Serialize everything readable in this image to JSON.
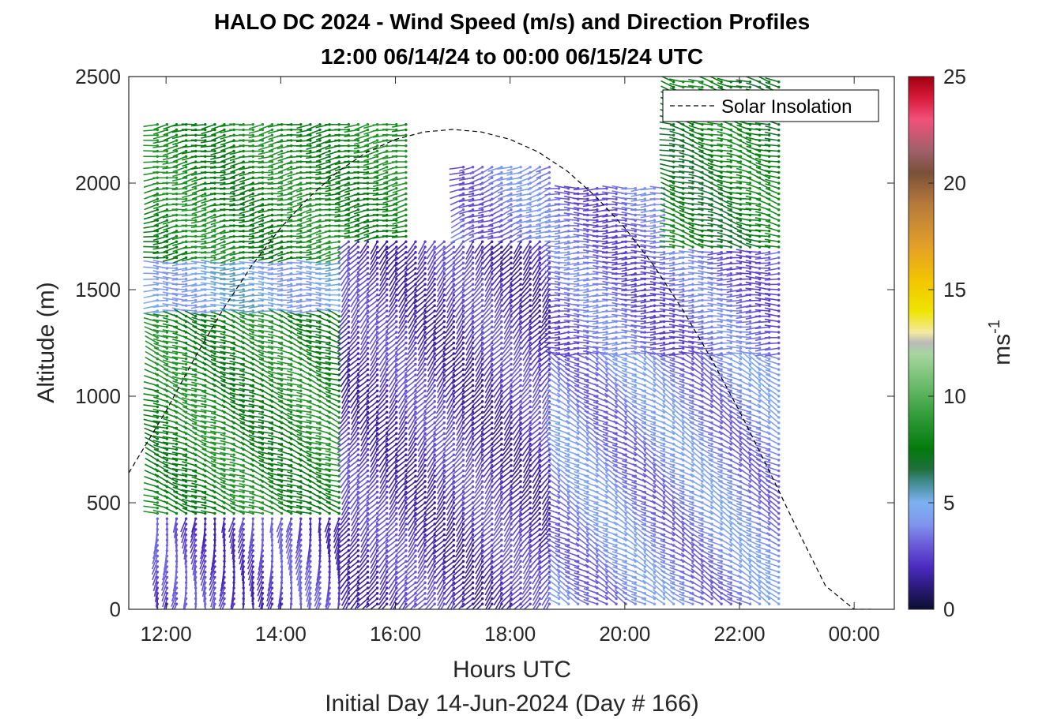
{
  "chart_data": {
    "type": "wind_barb_profile",
    "title": "HALO DC 2024 - Wind Speed (m/s) and Direction Profiles",
    "subtitle": "12:00 06/14/24 to 00:00 06/15/24  UTC",
    "xlabel": "Hours UTC",
    "xlabel2": "Initial Day 14-Jun-2024 (Day # 166)",
    "ylabel": "Altitude (m)",
    "xlim": [
      11.35,
      24.7
    ],
    "ylim": [
      0,
      2500
    ],
    "x_ticks": [
      12,
      14,
      16,
      18,
      20,
      22,
      24
    ],
    "x_tick_labels": [
      "12:00",
      "14:00",
      "16:00",
      "18:00",
      "20:00",
      "22:00",
      "00:00"
    ],
    "y_ticks": [
      0,
      500,
      1000,
      1500,
      2000,
      2500
    ],
    "y_tick_labels": [
      "0",
      "500",
      "1000",
      "1500",
      "2000",
      "2500"
    ],
    "legend": {
      "entry": "Solar Insolation",
      "position": "top-right",
      "line_style": "dashed",
      "color": "#000000"
    },
    "colorbar": {
      "label_base": "ms",
      "label_exp": "-1",
      "range": [
        0,
        25
      ],
      "ticks": [
        0,
        5,
        10,
        15,
        20,
        25
      ],
      "tick_labels": [
        "0",
        "5",
        "10",
        "15",
        "20",
        "25"
      ],
      "stops": [
        {
          "value": 0,
          "color": "#0b1030"
        },
        {
          "value": 1,
          "color": "#2a1a7a"
        },
        {
          "value": 2,
          "color": "#4b2bc0"
        },
        {
          "value": 3,
          "color": "#6a5ad8"
        },
        {
          "value": 4,
          "color": "#7f95ee"
        },
        {
          "value": 5,
          "color": "#7eb1f2"
        },
        {
          "value": 6,
          "color": "#3f8a8a"
        },
        {
          "value": 6.6,
          "color": "#1f6f3a"
        },
        {
          "value": 7.5,
          "color": "#037a0c"
        },
        {
          "value": 9,
          "color": "#2f9a36"
        },
        {
          "value": 10.5,
          "color": "#6abb6a"
        },
        {
          "value": 12,
          "color": "#a8d6a0"
        },
        {
          "value": 12.5,
          "color": "#b9b9b9"
        },
        {
          "value": 13,
          "color": "#f3eaa0"
        },
        {
          "value": 14,
          "color": "#f0e400"
        },
        {
          "value": 15.5,
          "color": "#f2c300"
        },
        {
          "value": 17,
          "color": "#e4a028"
        },
        {
          "value": 19,
          "color": "#b77a3c"
        },
        {
          "value": 20.5,
          "color": "#7a5038"
        },
        {
          "value": 21.5,
          "color": "#a0606a"
        },
        {
          "value": 23,
          "color": "#f2507a"
        },
        {
          "value": 24,
          "color": "#d81a3a"
        },
        {
          "value": 25,
          "color": "#a00010"
        }
      ]
    },
    "solar_insolation_curve": {
      "x": [
        11.35,
        12.0,
        12.5,
        13.0,
        13.5,
        14.0,
        14.5,
        15.0,
        15.5,
        16.0,
        16.5,
        17.0,
        17.5,
        18.0,
        18.5,
        19.0,
        19.5,
        20.0,
        20.5,
        21.0,
        21.5,
        22.0,
        22.5,
        23.0,
        23.5,
        24.0,
        24.3
      ],
      "y": [
        640,
        930,
        1180,
        1410,
        1615,
        1790,
        1935,
        2055,
        2145,
        2205,
        2240,
        2252,
        2240,
        2205,
        2145,
        2055,
        1935,
        1790,
        1615,
        1410,
        1180,
        930,
        660,
        380,
        110,
        0,
        0
      ]
    },
    "wind_profile_summary": {
      "times_start": 11.85,
      "times_end": 22.8,
      "time_step_hours": 0.1667,
      "altitude_step_m": 25,
      "regimes": [
        {
          "time_range": [
            11.85,
            15.1
          ],
          "altitude_range": [
            0,
            450
          ],
          "speed_ms": 2.5,
          "direction_from_deg": 190
        },
        {
          "time_range": [
            11.85,
            15.1
          ],
          "altitude_range": [
            450,
            1400
          ],
          "speed_ms": 8,
          "direction_from_deg": 290
        },
        {
          "time_range": [
            11.85,
            15.1
          ],
          "altitude_range": [
            1400,
            1650
          ],
          "speed_ms": 4.8,
          "direction_from_deg": 270
        },
        {
          "time_range": [
            11.85,
            16.3
          ],
          "altitude_range": [
            1650,
            2300
          ],
          "speed_ms": 8,
          "direction_from_deg": 260
        },
        {
          "time_range": [
            15.1,
            18.7
          ],
          "altitude_range": [
            0,
            1750
          ],
          "speed_ms": 2.2,
          "direction_from_deg": 220
        },
        {
          "time_range": [
            17.1,
            18.7
          ],
          "altitude_range": [
            1750,
            2100
          ],
          "speed_ms": 3.5,
          "direction_from_deg": 250
        },
        {
          "time_range": [
            18.7,
            22.8
          ],
          "altitude_range": [
            0,
            1200
          ],
          "speed_ms": 3.8,
          "direction_from_deg": 300
        },
        {
          "time_range": [
            18.7,
            22.8
          ],
          "altitude_range": [
            1200,
            2000
          ],
          "speed_ms": 3.2,
          "direction_from_deg": 270
        },
        {
          "time_range": [
            20.7,
            22.8
          ],
          "altitude_range": [
            1700,
            2500
          ],
          "speed_ms": 7.5,
          "direction_from_deg": 285
        }
      ]
    }
  }
}
